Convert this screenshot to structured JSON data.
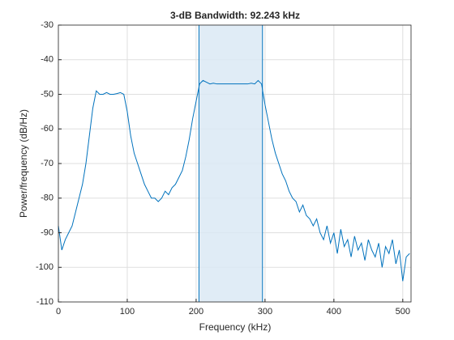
{
  "chart_data": {
    "type": "line",
    "title": "3-dB Bandwidth: 92.243 kHz",
    "xlabel": "Frequency (kHz)",
    "ylabel": "Power/frequency (dB/Hz)",
    "x": [
      0,
      5,
      10,
      15,
      20,
      25,
      30,
      35,
      40,
      45,
      50,
      55,
      60,
      65,
      70,
      75,
      80,
      85,
      90,
      95,
      100,
      105,
      110,
      115,
      120,
      125,
      130,
      135,
      140,
      145,
      150,
      155,
      160,
      165,
      170,
      175,
      180,
      185,
      190,
      195,
      200,
      205,
      210,
      215,
      220,
      225,
      230,
      235,
      240,
      245,
      250,
      255,
      260,
      265,
      270,
      275,
      280,
      285,
      290,
      295,
      300,
      305,
      310,
      315,
      320,
      325,
      330,
      335,
      340,
      345,
      350,
      355,
      360,
      365,
      370,
      375,
      380,
      385,
      390,
      395,
      400,
      405,
      410,
      415,
      420,
      425,
      430,
      435,
      440,
      445,
      450,
      455,
      460,
      465,
      470,
      475,
      480,
      485,
      490,
      495,
      500,
      505,
      510
    ],
    "series": [
      {
        "color": "#0072bd",
        "values": [
          -88,
          -95,
          -92,
          -90,
          -88,
          -84,
          -80,
          -76,
          -70,
          -62,
          -54,
          -49,
          -50,
          -50,
          -49.5,
          -50,
          -50,
          -49.8,
          -49.5,
          -50,
          -55,
          -62,
          -67,
          -70,
          -73,
          -76,
          -78,
          -80,
          -80,
          -81,
          -80,
          -78,
          -79,
          -77,
          -76,
          -74,
          -72,
          -68,
          -63,
          -57,
          -52,
          -47,
          -46,
          -46.5,
          -47,
          -46.8,
          -47,
          -47,
          -47,
          -47,
          -47,
          -47,
          -47,
          -47,
          -47,
          -47,
          -46.8,
          -47,
          -46,
          -47,
          -53,
          -58,
          -63,
          -67,
          -70,
          -73,
          -75,
          -78,
          -80,
          -81,
          -84,
          -82,
          -85,
          -86,
          -88,
          -86,
          -90,
          -92,
          -88,
          -93,
          -90,
          -96,
          -89,
          -94,
          -92,
          -97,
          -91,
          -95,
          -93,
          -98,
          -92,
          -95,
          -97,
          -93,
          -100,
          -94,
          -96,
          -92,
          -99,
          -95,
          -104,
          -97,
          -96
        ]
      }
    ],
    "band": [
      204.1,
      296.343
    ],
    "band_color": "#dbe9f5",
    "xlim": [
      0,
      512
    ],
    "xticks": [
      0,
      100,
      200,
      300,
      400,
      500
    ],
    "ylim": [
      -110,
      -30
    ],
    "yticks": [
      -110,
      -100,
      -90,
      -80,
      -70,
      -60,
      -50,
      -40,
      -30
    ],
    "grid": true
  }
}
